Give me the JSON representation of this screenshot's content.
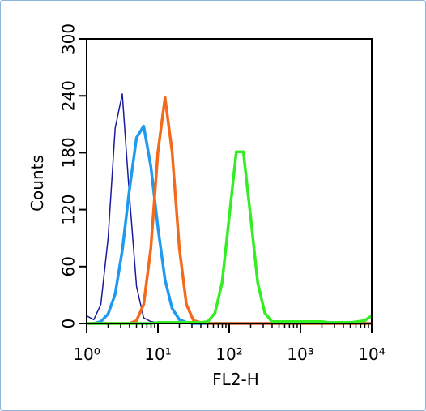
{
  "chart_data": {
    "type": "line",
    "x_label": "FL2-H",
    "y_label": "Counts",
    "x": [
      1,
      1.26,
      1.58,
      2,
      2.51,
      3.16,
      3.98,
      5.01,
      6.31,
      7.94,
      10,
      12.6,
      15.8,
      20,
      25.1,
      31.6,
      39.8,
      50.1,
      63.1,
      79.4,
      100,
      126,
      158,
      200,
      251,
      316,
      398,
      501,
      631,
      794,
      1000,
      1260,
      1580,
      2000,
      2510,
      3160,
      3980,
      5010,
      6310,
      7940,
      10000
    ],
    "series": [
      {
        "color": "#1a1a9e",
        "width": 1.5,
        "values": [
          8,
          4,
          20,
          90,
          206,
          242,
          135,
          39,
          6,
          2,
          1,
          0,
          0,
          0,
          0,
          0,
          0,
          0,
          0,
          0,
          0,
          0,
          0,
          0,
          0,
          0,
          0,
          0,
          0,
          0,
          0,
          0,
          0,
          0,
          0,
          0,
          0,
          0,
          0,
          0,
          0
        ]
      },
      {
        "color": "#1e9af0",
        "width": 3.5,
        "values": [
          0,
          0,
          2,
          10,
          31,
          77,
          141,
          196,
          208,
          166,
          101,
          46,
          16,
          4,
          1,
          0,
          0,
          0,
          0,
          0,
          0,
          0,
          0,
          0,
          0,
          0,
          0,
          0,
          0,
          0,
          0,
          0,
          0,
          0,
          0,
          0,
          0,
          0,
          0,
          0,
          0
        ]
      },
      {
        "color": "#f26a1b",
        "width": 3.5,
        "values": [
          0,
          0,
          0,
          0,
          0,
          0,
          0,
          3,
          20,
          79,
          181,
          238,
          181,
          79,
          20,
          3,
          1,
          0,
          0,
          0,
          0,
          0,
          0,
          0,
          0,
          0,
          0,
          0,
          0,
          0,
          0,
          0,
          0,
          0,
          0,
          0,
          0,
          0,
          0,
          0,
          0
        ]
      },
      {
        "color": "#33ee22",
        "width": 3.5,
        "values": [
          0,
          0,
          0,
          0,
          0,
          0,
          0,
          0,
          0,
          0,
          1,
          1,
          1,
          1,
          1,
          1,
          1,
          2,
          11,
          43,
          112,
          181,
          181,
          112,
          43,
          11,
          2,
          2,
          2,
          2,
          2,
          2,
          2,
          2,
          1,
          1,
          1,
          1,
          2,
          3,
          8
        ]
      }
    ],
    "log_x": true,
    "xlim": [
      1,
      10000
    ],
    "xticks": [
      {
        "value": 1,
        "label": "10⁰"
      },
      {
        "value": 10,
        "label": "10¹"
      },
      {
        "value": 100,
        "label": "10²"
      },
      {
        "value": 1000,
        "label": "10³"
      },
      {
        "value": 10000,
        "label": "10⁴"
      }
    ],
    "ylim": [
      0,
      300
    ],
    "yticks": [
      0,
      60,
      120,
      180,
      240,
      300
    ]
  }
}
